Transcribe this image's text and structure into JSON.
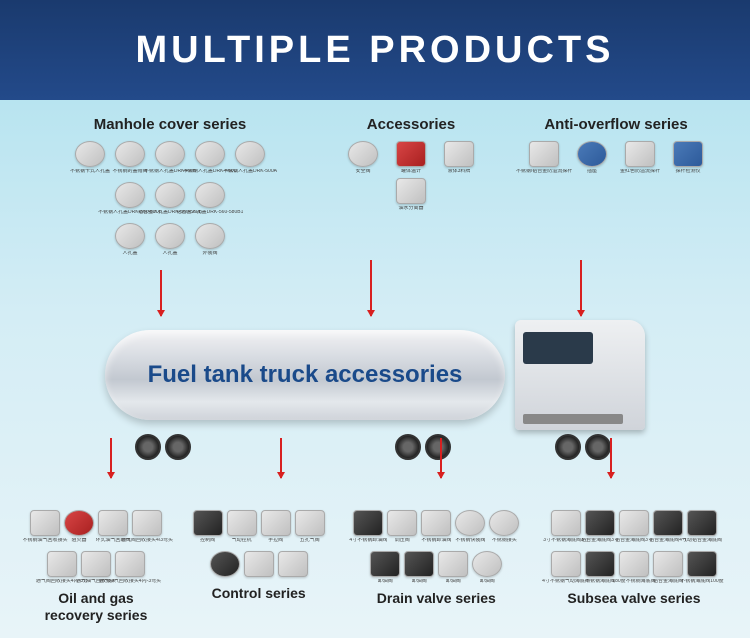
{
  "header": {
    "title": "MULTIPLE PRODUCTS"
  },
  "truck": {
    "caption": "Fuel tank truck accessories"
  },
  "colors": {
    "header_bg_top": "#1a3a6e",
    "header_bg_bottom": "#234a8a",
    "header_text": "#ffffff",
    "sky_top": "#b8e4f0",
    "sky_bottom": "#e8f4f8",
    "truck_caption": "#1a4a8a",
    "arrow": "#d82020",
    "category_title": "#222222"
  },
  "top_categories": [
    {
      "title": "Manhole cover series",
      "rows": [
        [
          {
            "label": "不锈钢卡式人孔盖",
            "shape": "round"
          },
          {
            "label": "不锈钢的盖帽阀",
            "shape": "round"
          },
          {
            "label": "不锈钢人孔盖DRK460B",
            "shape": "round"
          },
          {
            "label": "不锈钢人孔盖DRK-460C",
            "shape": "round"
          },
          {
            "label": "不锈钢人孔盖DRK-500A",
            "shape": "round"
          }
        ],
        [
          {
            "label": "不锈钢人孔盖DRK-560-580B",
            "shape": "round"
          },
          {
            "label": "铝合金人孔盖DRK-560-580B",
            "shape": "round"
          },
          {
            "label": "铝合金人孔盖DRK-560-580B1",
            "shape": "round"
          }
        ],
        [
          {
            "label": "人孔盖",
            "shape": "round"
          },
          {
            "label": "人孔盖",
            "shape": "round"
          },
          {
            "label": "外装阀",
            "shape": "round"
          }
        ]
      ]
    },
    {
      "title": "Accessories",
      "rows": [
        [
          {
            "label": "安全阀",
            "shape": "round"
          },
          {
            "label": "罐体温计",
            "shape": "square",
            "variant": "red"
          },
          {
            "label": "液体3料牌",
            "shape": "square"
          },
          {
            "label": "油水分离器",
            "shape": "square"
          }
        ]
      ]
    },
    {
      "title": "Anti-overflow series",
      "rows": [
        [
          {
            "label": "不锈钢/铝合金防溢流探杆",
            "shape": "square"
          },
          {
            "label": "插座",
            "shape": "round",
            "variant": "blue"
          },
          {
            "label": "金红色防溢流探杆",
            "shape": "square"
          },
          {
            "label": "探杆检测仪",
            "shape": "square",
            "variant": "blue"
          }
        ]
      ]
    }
  ],
  "bottom_categories": [
    {
      "title": "Oil and gas\nrecovery series",
      "rows": [
        [
          {
            "label": "不锈钢油气回收接头",
            "shape": "square"
          },
          {
            "label": "阻火器",
            "shape": "round",
            "variant": "red"
          },
          {
            "label": "环式油气回收阀",
            "shape": "square"
          },
          {
            "label": "通气阀回收接头4/3弯头",
            "shape": "square"
          }
        ],
        [
          {
            "label": "通气阀回收接头4内-3外",
            "shape": "square"
          },
          {
            "label": "通气油气回收接头",
            "shape": "square"
          },
          {
            "label": "通气油气回收接头4内-3弯头",
            "shape": "square"
          }
        ]
      ]
    },
    {
      "title": "Control series",
      "rows": [
        [
          {
            "label": "控制阀",
            "shape": "square",
            "variant": "dark"
          },
          {
            "label": "气动控机",
            "shape": "square"
          },
          {
            "label": "手拉阀",
            "shape": "square"
          },
          {
            "label": "五孔气阀",
            "shape": "square"
          }
        ],
        [
          {
            "label": "",
            "shape": "round",
            "variant": "dark"
          },
          {
            "label": "",
            "shape": "square"
          },
          {
            "label": "",
            "shape": "square"
          }
        ]
      ]
    },
    {
      "title": "Drain valve series",
      "rows": [
        [
          {
            "label": "4寸不锈钢卸油阀",
            "shape": "square",
            "variant": "dark"
          },
          {
            "label": "调压阀",
            "shape": "square"
          },
          {
            "label": "不锈钢卸油阀",
            "shape": "square"
          },
          {
            "label": "不锈钢快装阀",
            "shape": "round"
          },
          {
            "label": "不锈钢接头",
            "shape": "round"
          }
        ],
        [
          {
            "label": "卸油阀",
            "shape": "square",
            "variant": "dark"
          },
          {
            "label": "卸油阀",
            "shape": "square",
            "variant": "dark"
          },
          {
            "label": "卸油阀",
            "shape": "square"
          },
          {
            "label": "卸油阀",
            "shape": "round"
          }
        ]
      ]
    },
    {
      "title": "Subsea valve series",
      "rows": [
        [
          {
            "label": "3寸不锈钢海底阀3寸",
            "shape": "square"
          },
          {
            "label": "铝合金海底阀3寸",
            "shape": "square",
            "variant": "dark"
          },
          {
            "label": "铝合金海底阀3寸",
            "shape": "square"
          },
          {
            "label": "铝合金海底阀4寸",
            "shape": "square",
            "variant": "dark"
          },
          {
            "label": "气动铝合金海底阀",
            "shape": "square",
            "variant": "dark"
          }
        ],
        [
          {
            "label": "4寸不锈钢气动海底阀",
            "shape": "square"
          },
          {
            "label": "不锈钢海底阀",
            "shape": "square",
            "variant": "dark"
          },
          {
            "label": "180度不锈钢海底阀",
            "shape": "square"
          },
          {
            "label": "铝合金海底阀",
            "shape": "square"
          },
          {
            "label": "不锈钢海底阀100度",
            "shape": "square",
            "variant": "dark"
          }
        ]
      ]
    }
  ]
}
